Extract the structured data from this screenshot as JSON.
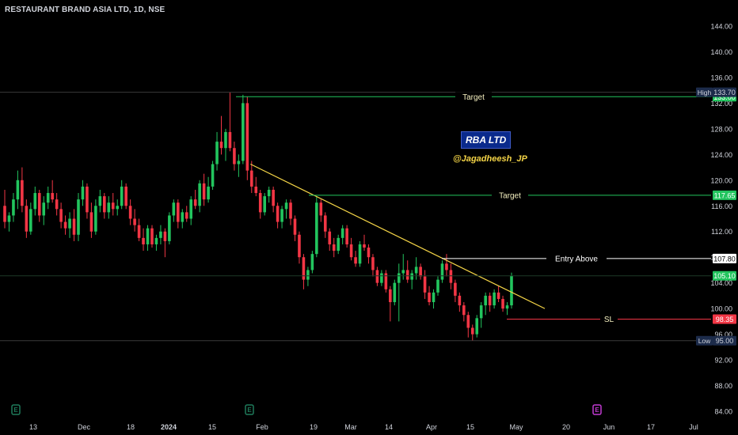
{
  "header": {
    "title": "RESTAURANT BRAND ASIA LTD, 1D, NSE"
  },
  "annotations": {
    "brand": "RBA LTD",
    "handle": "@Jagadheesh_JP"
  },
  "chart_data": {
    "type": "candlestick",
    "title": "RESTAURANT BRAND ASIA LTD, 1D, NSE",
    "ylim": [
      84,
      144
    ],
    "y_ticks": [
      84,
      88,
      92,
      96,
      100,
      104,
      108,
      112,
      116,
      120,
      124,
      128,
      132,
      136,
      140,
      144
    ],
    "y_tick_labels": [
      "84.00",
      "88.00",
      "92.00",
      "96.00",
      "100.00",
      "104.00",
      "108.00",
      "112.00",
      "116.00",
      "120.00",
      "124.00",
      "128.00",
      "132.00",
      "136.00",
      "140.00",
      "144.00"
    ],
    "x_tick_labels": [
      "13",
      "Dec",
      "18",
      "2024",
      "15",
      "Feb",
      "19",
      "Mar",
      "14",
      "Apr",
      "15",
      "May",
      "20",
      "Jun",
      "17",
      "Jul"
    ],
    "candles": [
      {
        "o": 116.0,
        "h": 118.5,
        "l": 112.5,
        "c": 113.5
      },
      {
        "o": 113.5,
        "h": 115.0,
        "l": 112.0,
        "c": 114.5
      },
      {
        "o": 114.5,
        "h": 118.0,
        "l": 113.5,
        "c": 117.0
      },
      {
        "o": 117.0,
        "h": 121.5,
        "l": 115.5,
        "c": 120.0
      },
      {
        "o": 120.0,
        "h": 122.0,
        "l": 115.0,
        "c": 116.0
      },
      {
        "o": 116.0,
        "h": 117.0,
        "l": 111.0,
        "c": 112.0
      },
      {
        "o": 112.0,
        "h": 116.5,
        "l": 111.5,
        "c": 115.5
      },
      {
        "o": 115.5,
        "h": 119.0,
        "l": 114.5,
        "c": 118.0
      },
      {
        "o": 118.0,
        "h": 118.5,
        "l": 113.5,
        "c": 114.5
      },
      {
        "o": 114.5,
        "h": 117.5,
        "l": 113.0,
        "c": 116.5
      },
      {
        "o": 116.5,
        "h": 119.0,
        "l": 115.5,
        "c": 118.0
      },
      {
        "o": 118.0,
        "h": 120.0,
        "l": 116.5,
        "c": 117.0
      },
      {
        "o": 117.0,
        "h": 118.0,
        "l": 114.5,
        "c": 115.5
      },
      {
        "o": 115.5,
        "h": 116.5,
        "l": 112.5,
        "c": 113.5
      },
      {
        "o": 113.5,
        "h": 114.5,
        "l": 111.5,
        "c": 112.5
      },
      {
        "o": 112.5,
        "h": 115.0,
        "l": 111.0,
        "c": 114.0
      },
      {
        "o": 114.0,
        "h": 115.5,
        "l": 110.5,
        "c": 111.5
      },
      {
        "o": 111.5,
        "h": 118.0,
        "l": 110.5,
        "c": 117.0
      },
      {
        "o": 117.0,
        "h": 120.0,
        "l": 116.0,
        "c": 119.0
      },
      {
        "o": 119.0,
        "h": 119.5,
        "l": 114.0,
        "c": 115.0
      },
      {
        "o": 115.0,
        "h": 116.5,
        "l": 111.0,
        "c": 112.0
      },
      {
        "o": 112.0,
        "h": 117.0,
        "l": 111.5,
        "c": 116.0
      },
      {
        "o": 116.0,
        "h": 118.5,
        "l": 115.0,
        "c": 117.5
      },
      {
        "o": 117.5,
        "h": 118.0,
        "l": 114.0,
        "c": 115.0
      },
      {
        "o": 115.0,
        "h": 117.5,
        "l": 114.0,
        "c": 116.5
      },
      {
        "o": 116.5,
        "h": 118.0,
        "l": 114.5,
        "c": 115.5
      },
      {
        "o": 115.5,
        "h": 117.0,
        "l": 114.5,
        "c": 116.0
      },
      {
        "o": 116.0,
        "h": 120.0,
        "l": 115.5,
        "c": 119.0
      },
      {
        "o": 119.0,
        "h": 119.5,
        "l": 115.5,
        "c": 116.0
      },
      {
        "o": 116.0,
        "h": 117.0,
        "l": 113.0,
        "c": 114.0
      },
      {
        "o": 114.0,
        "h": 115.5,
        "l": 112.0,
        "c": 113.0
      },
      {
        "o": 113.0,
        "h": 114.0,
        "l": 110.5,
        "c": 111.0
      },
      {
        "o": 111.0,
        "h": 112.5,
        "l": 109.0,
        "c": 110.0
      },
      {
        "o": 110.0,
        "h": 113.0,
        "l": 109.0,
        "c": 112.5
      },
      {
        "o": 112.5,
        "h": 113.0,
        "l": 109.5,
        "c": 110.0
      },
      {
        "o": 110.0,
        "h": 111.5,
        "l": 109.0,
        "c": 111.0
      },
      {
        "o": 111.0,
        "h": 113.0,
        "l": 110.0,
        "c": 112.0
      },
      {
        "o": 112.0,
        "h": 112.5,
        "l": 108.0,
        "c": 110.5
      },
      {
        "o": 110.5,
        "h": 115.0,
        "l": 110.0,
        "c": 114.5
      },
      {
        "o": 114.5,
        "h": 117.0,
        "l": 113.5,
        "c": 116.5
      },
      {
        "o": 116.5,
        "h": 117.0,
        "l": 112.5,
        "c": 113.5
      },
      {
        "o": 113.5,
        "h": 115.5,
        "l": 112.5,
        "c": 115.0
      },
      {
        "o": 115.0,
        "h": 116.0,
        "l": 113.5,
        "c": 114.0
      },
      {
        "o": 114.0,
        "h": 117.5,
        "l": 113.0,
        "c": 117.0
      },
      {
        "o": 117.0,
        "h": 118.5,
        "l": 115.5,
        "c": 116.0
      },
      {
        "o": 116.0,
        "h": 120.0,
        "l": 115.0,
        "c": 119.5
      },
      {
        "o": 119.5,
        "h": 121.0,
        "l": 116.0,
        "c": 117.0
      },
      {
        "o": 117.0,
        "h": 120.5,
        "l": 116.5,
        "c": 119.0
      },
      {
        "o": 119.0,
        "h": 123.0,
        "l": 118.5,
        "c": 122.5
      },
      {
        "o": 122.5,
        "h": 127.5,
        "l": 121.5,
        "c": 126.0
      },
      {
        "o": 126.0,
        "h": 130.0,
        "l": 124.0,
        "c": 125.0
      },
      {
        "o": 125.0,
        "h": 128.0,
        "l": 123.0,
        "c": 127.5
      },
      {
        "o": 127.5,
        "h": 133.7,
        "l": 124.5,
        "c": 125.0
      },
      {
        "o": 125.0,
        "h": 126.0,
        "l": 121.5,
        "c": 122.5
      },
      {
        "o": 122.5,
        "h": 124.0,
        "l": 120.5,
        "c": 123.0
      },
      {
        "o": 123.0,
        "h": 133.3,
        "l": 122.5,
        "c": 132.0
      },
      {
        "o": 132.0,
        "h": 133.0,
        "l": 120.0,
        "c": 121.5
      },
      {
        "o": 121.5,
        "h": 123.0,
        "l": 118.0,
        "c": 119.0
      },
      {
        "o": 119.0,
        "h": 120.5,
        "l": 117.5,
        "c": 118.0
      },
      {
        "o": 118.0,
        "h": 118.5,
        "l": 114.0,
        "c": 115.0
      },
      {
        "o": 115.0,
        "h": 118.0,
        "l": 114.5,
        "c": 117.5
      },
      {
        "o": 117.5,
        "h": 119.0,
        "l": 116.5,
        "c": 118.5
      },
      {
        "o": 118.5,
        "h": 119.0,
        "l": 115.0,
        "c": 116.0
      },
      {
        "o": 116.0,
        "h": 116.5,
        "l": 112.5,
        "c": 113.5
      },
      {
        "o": 113.5,
        "h": 116.0,
        "l": 112.5,
        "c": 115.5
      },
      {
        "o": 115.5,
        "h": 117.0,
        "l": 114.0,
        "c": 116.5
      },
      {
        "o": 116.5,
        "h": 117.0,
        "l": 113.0,
        "c": 114.0
      },
      {
        "o": 114.0,
        "h": 114.5,
        "l": 110.5,
        "c": 111.5
      },
      {
        "o": 111.5,
        "h": 112.0,
        "l": 107.0,
        "c": 108.0
      },
      {
        "o": 108.0,
        "h": 108.5,
        "l": 103.0,
        "c": 104.5
      },
      {
        "o": 104.5,
        "h": 106.5,
        "l": 103.5,
        "c": 106.0
      },
      {
        "o": 106.0,
        "h": 109.0,
        "l": 105.5,
        "c": 108.5
      },
      {
        "o": 108.5,
        "h": 117.5,
        "l": 108.0,
        "c": 116.5
      },
      {
        "o": 116.5,
        "h": 117.0,
        "l": 113.5,
        "c": 114.5
      },
      {
        "o": 114.5,
        "h": 115.0,
        "l": 111.0,
        "c": 112.0
      },
      {
        "o": 112.0,
        "h": 112.5,
        "l": 109.0,
        "c": 110.0
      },
      {
        "o": 110.0,
        "h": 111.0,
        "l": 108.0,
        "c": 109.0
      },
      {
        "o": 109.0,
        "h": 111.5,
        "l": 108.5,
        "c": 111.0
      },
      {
        "o": 111.0,
        "h": 113.0,
        "l": 110.0,
        "c": 112.5
      },
      {
        "o": 112.5,
        "h": 113.0,
        "l": 109.5,
        "c": 110.0
      },
      {
        "o": 110.0,
        "h": 111.0,
        "l": 107.5,
        "c": 108.0
      },
      {
        "o": 108.0,
        "h": 109.0,
        "l": 106.5,
        "c": 107.0
      },
      {
        "o": 107.0,
        "h": 110.5,
        "l": 106.5,
        "c": 110.0
      },
      {
        "o": 110.0,
        "h": 111.5,
        "l": 109.0,
        "c": 109.5
      },
      {
        "o": 109.5,
        "h": 110.0,
        "l": 107.0,
        "c": 108.0
      },
      {
        "o": 108.0,
        "h": 108.5,
        "l": 105.0,
        "c": 106.0
      },
      {
        "o": 106.0,
        "h": 106.5,
        "l": 103.5,
        "c": 104.0
      },
      {
        "o": 104.0,
        "h": 106.0,
        "l": 103.5,
        "c": 105.5
      },
      {
        "o": 105.5,
        "h": 106.0,
        "l": 102.5,
        "c": 103.0
      },
      {
        "o": 103.0,
        "h": 103.5,
        "l": 98.0,
        "c": 101.0
      },
      {
        "o": 101.0,
        "h": 104.5,
        "l": 100.5,
        "c": 104.0
      },
      {
        "o": 104.0,
        "h": 107.0,
        "l": 98.0,
        "c": 105.5
      },
      {
        "o": 105.5,
        "h": 108.5,
        "l": 104.5,
        "c": 106.0
      },
      {
        "o": 106.0,
        "h": 107.5,
        "l": 104.0,
        "c": 104.5
      },
      {
        "o": 104.5,
        "h": 106.0,
        "l": 103.0,
        "c": 105.5
      },
      {
        "o": 105.5,
        "h": 108.0,
        "l": 104.5,
        "c": 106.5
      },
      {
        "o": 106.5,
        "h": 107.0,
        "l": 104.5,
        "c": 105.0
      },
      {
        "o": 105.0,
        "h": 106.0,
        "l": 101.5,
        "c": 102.5
      },
      {
        "o": 102.5,
        "h": 103.5,
        "l": 100.5,
        "c": 101.0
      },
      {
        "o": 101.0,
        "h": 103.0,
        "l": 100.0,
        "c": 102.5
      },
      {
        "o": 102.5,
        "h": 105.0,
        "l": 102.0,
        "c": 104.5
      },
      {
        "o": 104.5,
        "h": 107.5,
        "l": 104.0,
        "c": 107.0
      },
      {
        "o": 107.0,
        "h": 108.5,
        "l": 105.0,
        "c": 106.0
      },
      {
        "o": 106.0,
        "h": 107.0,
        "l": 103.0,
        "c": 104.0
      },
      {
        "o": 104.0,
        "h": 104.5,
        "l": 101.0,
        "c": 102.0
      },
      {
        "o": 102.0,
        "h": 102.5,
        "l": 99.5,
        "c": 100.5
      },
      {
        "o": 100.5,
        "h": 101.0,
        "l": 98.0,
        "c": 99.0
      },
      {
        "o": 99.0,
        "h": 99.5,
        "l": 95.5,
        "c": 97.0
      },
      {
        "o": 97.0,
        "h": 97.5,
        "l": 95.0,
        "c": 96.0
      },
      {
        "o": 96.0,
        "h": 99.0,
        "l": 95.5,
        "c": 98.5
      },
      {
        "o": 98.5,
        "h": 101.0,
        "l": 97.0,
        "c": 100.5
      },
      {
        "o": 100.5,
        "h": 102.5,
        "l": 99.0,
        "c": 102.0
      },
      {
        "o": 102.0,
        "h": 102.5,
        "l": 99.5,
        "c": 100.5
      },
      {
        "o": 100.5,
        "h": 103.0,
        "l": 100.0,
        "c": 102.5
      },
      {
        "o": 102.5,
        "h": 103.5,
        "l": 101.0,
        "c": 101.5
      },
      {
        "o": 101.5,
        "h": 102.0,
        "l": 99.5,
        "c": 100.0
      },
      {
        "o": 100.0,
        "h": 101.0,
        "l": 99.0,
        "c": 100.5
      },
      {
        "o": 100.5,
        "h": 105.6,
        "l": 100.0,
        "c": 105.1
      }
    ],
    "levels": [
      {
        "name": "Target",
        "value": 133.0,
        "label": "133.00",
        "color": "#22c55e",
        "text_color": "#ffffff"
      },
      {
        "name": "Target",
        "value": 117.65,
        "label": "117.65",
        "color": "#22c55e",
        "text_color": "#ffffff"
      },
      {
        "name": "Entry Above",
        "value": 107.8,
        "label": "107.80",
        "color": "#ffffff",
        "text_color": "#000000"
      },
      {
        "name": "SL",
        "value": 98.35,
        "label": "98.35",
        "color": "#f23645",
        "text_color": "#ffffff"
      }
    ],
    "price_tags": [
      {
        "name": "High",
        "value": 133.7,
        "label": "133.70"
      },
      {
        "name": "Low",
        "value": 95.0,
        "label": "95.00"
      }
    ],
    "last_price": {
      "value": 105.1,
      "label": "105.10",
      "color": "#22c55e"
    },
    "trendline": {
      "from": 122.5,
      "to": 100.0,
      "color": "#f5d547"
    },
    "colors": {
      "up": "#22c55e",
      "down": "#f23645",
      "background": "#000000"
    },
    "earnings_markers": [
      {
        "label": "E",
        "color": "#1f7a5a"
      },
      {
        "label": "E",
        "color": "#1f7a5a"
      },
      {
        "label": "E",
        "color": "#c13ad1"
      }
    ]
  }
}
